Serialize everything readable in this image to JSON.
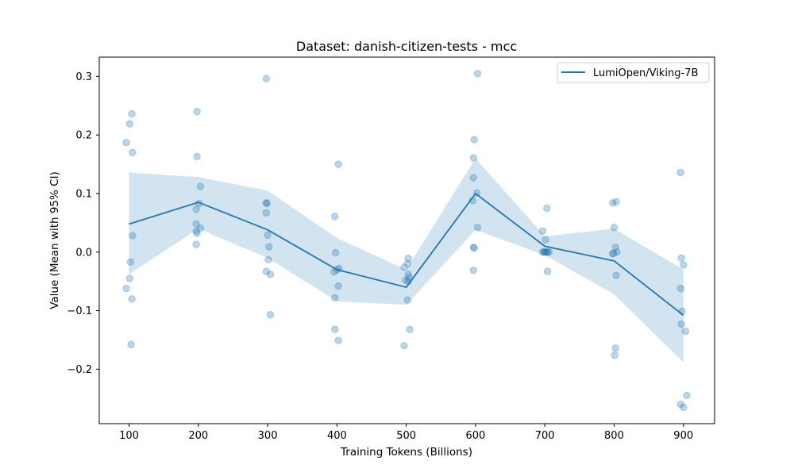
{
  "chart_data": {
    "type": "line",
    "title": "Dataset: danish-citizen-tests - mcc",
    "xlabel": "Training Tokens (Billions)",
    "ylabel": "Value (Mean with 95% CI)",
    "xlim": [
      57,
      945
    ],
    "ylim": [
      -0.293,
      0.333
    ],
    "xticks": [
      100,
      200,
      300,
      400,
      500,
      600,
      700,
      800,
      900
    ],
    "yticks": [
      -0.2,
      -0.1,
      0.0,
      0.1,
      0.2,
      0.3
    ],
    "ytick_labels": [
      "−0.2",
      "−0.1",
      "0.0",
      "0.1",
      "0.2",
      "0.3"
    ],
    "grid": false,
    "legend_position": "top-right",
    "series": [
      {
        "name": "LumiOpen/Viking-7B",
        "color": "#1f77b4",
        "x": [
          100,
          200,
          300,
          400,
          500,
          600,
          700,
          800,
          900
        ],
        "values": [
          0.048,
          0.085,
          0.038,
          -0.03,
          -0.06,
          0.1,
          0.01,
          -0.015,
          -0.108
        ],
        "ci_lower": [
          -0.038,
          0.04,
          -0.01,
          -0.084,
          -0.09,
          0.038,
          -0.005,
          -0.072,
          -0.188
        ],
        "ci_upper": [
          0.136,
          0.128,
          0.105,
          0.024,
          -0.03,
          0.16,
          0.027,
          0.04,
          -0.03
        ]
      }
    ],
    "scatter_points": [
      {
        "x": 96,
        "y": 0.187
      },
      {
        "x": 101,
        "y": 0.219
      },
      {
        "x": 104,
        "y": 0.236
      },
      {
        "x": 105,
        "y": 0.17
      },
      {
        "x": 105,
        "y": 0.028
      },
      {
        "x": 102,
        "y": -0.017
      },
      {
        "x": 101,
        "y": -0.045
      },
      {
        "x": 96,
        "y": -0.062
      },
      {
        "x": 104,
        "y": -0.08
      },
      {
        "x": 103,
        "y": -0.158
      },
      {
        "x": 198,
        "y": 0.24
      },
      {
        "x": 198,
        "y": 0.163
      },
      {
        "x": 203,
        "y": 0.112
      },
      {
        "x": 201,
        "y": 0.083
      },
      {
        "x": 197,
        "y": 0.073
      },
      {
        "x": 197,
        "y": 0.048
      },
      {
        "x": 203,
        "y": 0.041
      },
      {
        "x": 197,
        "y": 0.036
      },
      {
        "x": 198,
        "y": 0.032
      },
      {
        "x": 197,
        "y": 0.013
      },
      {
        "x": 298,
        "y": 0.296
      },
      {
        "x": 298,
        "y": 0.084
      },
      {
        "x": 299,
        "y": 0.083
      },
      {
        "x": 298,
        "y": 0.067
      },
      {
        "x": 300,
        "y": 0.029
      },
      {
        "x": 302,
        "y": 0.009
      },
      {
        "x": 301,
        "y": -0.013
      },
      {
        "x": 298,
        "y": -0.033
      },
      {
        "x": 304,
        "y": -0.038
      },
      {
        "x": 304,
        "y": -0.107
      },
      {
        "x": 402,
        "y": 0.15
      },
      {
        "x": 397,
        "y": 0.061
      },
      {
        "x": 398,
        "y": -0.001
      },
      {
        "x": 403,
        "y": -0.028
      },
      {
        "x": 400,
        "y": -0.03
      },
      {
        "x": 396,
        "y": -0.034
      },
      {
        "x": 402,
        "y": -0.058
      },
      {
        "x": 397,
        "y": -0.078
      },
      {
        "x": 397,
        "y": -0.132
      },
      {
        "x": 402,
        "y": -0.151
      },
      {
        "x": 503,
        "y": -0.011
      },
      {
        "x": 502,
        "y": -0.02
      },
      {
        "x": 497,
        "y": -0.026
      },
      {
        "x": 503,
        "y": -0.038
      },
      {
        "x": 504,
        "y": -0.044
      },
      {
        "x": 499,
        "y": -0.048
      },
      {
        "x": 503,
        "y": -0.05
      },
      {
        "x": 502,
        "y": -0.082
      },
      {
        "x": 505,
        "y": -0.132
      },
      {
        "x": 497,
        "y": -0.16
      },
      {
        "x": 603,
        "y": 0.305
      },
      {
        "x": 598,
        "y": 0.192
      },
      {
        "x": 597,
        "y": 0.161
      },
      {
        "x": 597,
        "y": 0.127
      },
      {
        "x": 602,
        "y": 0.101
      },
      {
        "x": 596,
        "y": 0.088
      },
      {
        "x": 603,
        "y": 0.042
      },
      {
        "x": 597,
        "y": 0.008
      },
      {
        "x": 598,
        "y": 0.007
      },
      {
        "x": 597,
        "y": -0.031
      },
      {
        "x": 703,
        "y": 0.075
      },
      {
        "x": 697,
        "y": 0.036
      },
      {
        "x": 701,
        "y": 0.021
      },
      {
        "x": 697,
        "y": 0.0
      },
      {
        "x": 700,
        "y": 0.0
      },
      {
        "x": 702,
        "y": 0.0
      },
      {
        "x": 704,
        "y": 0.0
      },
      {
        "x": 706,
        "y": 0.0
      },
      {
        "x": 699,
        "y": 0.0
      },
      {
        "x": 704,
        "y": -0.033
      },
      {
        "x": 803,
        "y": 0.086
      },
      {
        "x": 798,
        "y": 0.084
      },
      {
        "x": 800,
        "y": 0.042
      },
      {
        "x": 802,
        "y": 0.008
      },
      {
        "x": 799,
        "y": -0.002
      },
      {
        "x": 804,
        "y": 0.0
      },
      {
        "x": 798,
        "y": -0.003
      },
      {
        "x": 803,
        "y": -0.04
      },
      {
        "x": 802,
        "y": -0.164
      },
      {
        "x": 801,
        "y": -0.176
      },
      {
        "x": 896,
        "y": 0.136
      },
      {
        "x": 897,
        "y": -0.01
      },
      {
        "x": 900,
        "y": -0.022
      },
      {
        "x": 896,
        "y": -0.062
      },
      {
        "x": 898,
        "y": -0.101
      },
      {
        "x": 897,
        "y": -0.123
      },
      {
        "x": 903,
        "y": -0.135
      },
      {
        "x": 905,
        "y": -0.245
      },
      {
        "x": 896,
        "y": -0.26
      },
      {
        "x": 900,
        "y": -0.265
      }
    ]
  }
}
